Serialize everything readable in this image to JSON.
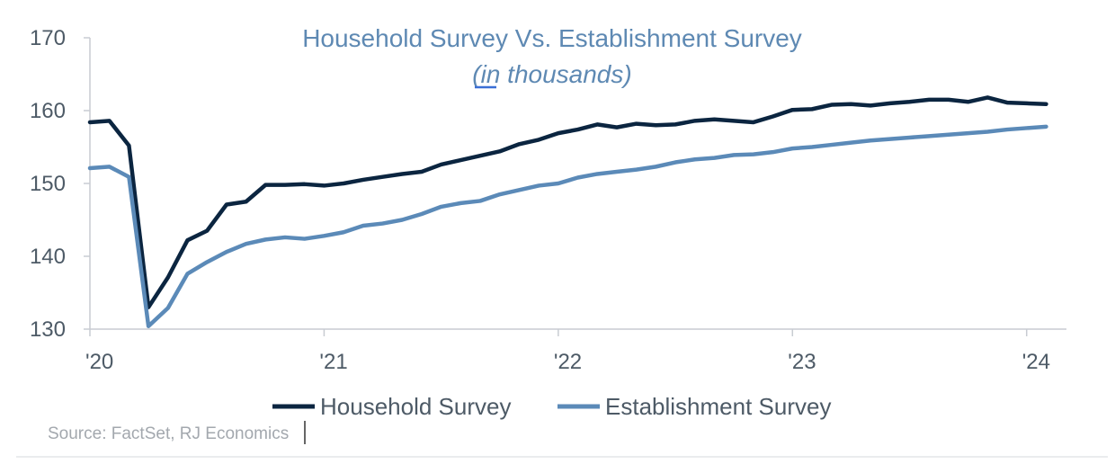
{
  "chart_data": {
    "type": "line",
    "title": "Household Survey Vs. Establishment Survey",
    "subtitle_prefix": "(",
    "subtitle_underlined": "in",
    "subtitle_rest": " thousands)",
    "xlabel": "",
    "ylabel": "",
    "ylim": [
      130,
      170
    ],
    "yticks": [
      130,
      140,
      150,
      160,
      170
    ],
    "xlim": [
      2020.0,
      2024.17
    ],
    "xticks": [
      {
        "value": 2020,
        "label": "'20"
      },
      {
        "value": 2021,
        "label": "'21"
      },
      {
        "value": 2022,
        "label": "'22"
      },
      {
        "value": 2023,
        "label": "'23"
      },
      {
        "value": 2024,
        "label": "'24"
      }
    ],
    "grid": false,
    "legend_position": "bottom",
    "x_start": "2020-01",
    "x_frequency": "monthly",
    "series": [
      {
        "name": "Household Survey",
        "color": "#0b2540",
        "values": [
          158.4,
          158.6,
          155.2,
          133.0,
          137.1,
          142.2,
          143.5,
          147.1,
          147.5,
          149.8,
          149.8,
          149.9,
          149.7,
          150.0,
          150.5,
          150.9,
          151.3,
          151.6,
          152.6,
          153.2,
          153.8,
          154.4,
          155.4,
          156.0,
          156.9,
          157.4,
          158.1,
          157.7,
          158.2,
          158.0,
          158.1,
          158.6,
          158.8,
          158.6,
          158.4,
          159.2,
          160.1,
          160.2,
          160.8,
          160.9,
          160.7,
          161.0,
          161.2,
          161.5,
          161.5,
          161.2,
          161.8,
          161.1,
          161.0,
          160.9
        ]
      },
      {
        "name": "Establishment Survey",
        "color": "#5b8ab8",
        "values": [
          152.1,
          152.3,
          150.9,
          130.4,
          132.9,
          137.6,
          139.2,
          140.6,
          141.7,
          142.3,
          142.6,
          142.4,
          142.8,
          143.3,
          144.2,
          144.5,
          145.0,
          145.8,
          146.8,
          147.3,
          147.6,
          148.5,
          149.1,
          149.7,
          150.0,
          150.8,
          151.3,
          151.6,
          151.9,
          152.3,
          152.9,
          153.3,
          153.5,
          153.9,
          154.0,
          154.3,
          154.8,
          155.0,
          155.3,
          155.6,
          155.9,
          156.1,
          156.3,
          156.5,
          156.7,
          156.9,
          157.1,
          157.4,
          157.6,
          157.8
        ]
      }
    ]
  },
  "source": "Source: FactSet, RJ Economics"
}
